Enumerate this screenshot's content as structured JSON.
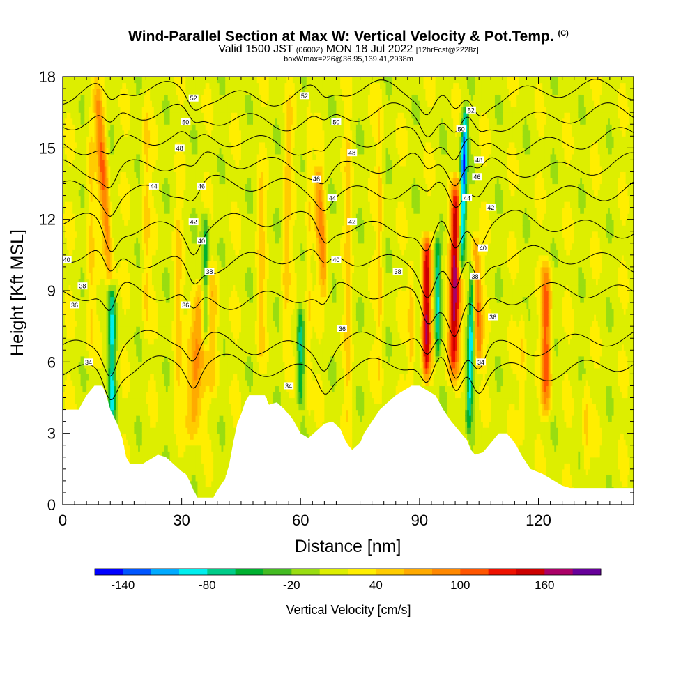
{
  "header": {
    "title": "Wind-Parallel Section at Max W: Vertical Velocity & Pot.Temp.",
    "copyright": "(C)",
    "valid_pre": "Valid 1500 JST",
    "valid_z": "(0600Z)",
    "valid_mid": "MON 18 Jul 2022",
    "valid_fcst": "[12hrFcst@2228z]",
    "box": "boxWmax=226@36.95,139.41,2938m"
  },
  "chart_data": {
    "type": "heatmap",
    "xlabel": "Distance [nm]",
    "ylabel": "Height [Kft MSL]",
    "xlim": [
      0,
      144
    ],
    "ylim": [
      0,
      18
    ],
    "x_ticks": [
      0,
      30,
      60,
      90,
      120
    ],
    "y_ticks": [
      0,
      3,
      6,
      9,
      12,
      15,
      18
    ],
    "colorbar": {
      "label": "Vertical Velocity [cm/s]",
      "tick_labels": [
        "-140",
        "-80",
        "-20",
        "40",
        "100",
        "160"
      ],
      "colors": [
        "#0000ff",
        "#0055ff",
        "#00aaff",
        "#00eeee",
        "#00cc88",
        "#00b030",
        "#44bb22",
        "#99dd11",
        "#ddee00",
        "#ffee00",
        "#ffcc00",
        "#ffaa00",
        "#ff8800",
        "#ff5500",
        "#ee1100",
        "#cc0000",
        "#aa0066",
        "#660099"
      ]
    },
    "terrain_top_kft": [
      [
        0,
        4.0
      ],
      [
        2,
        4.0
      ],
      [
        4,
        4.0
      ],
      [
        6,
        4.6
      ],
      [
        8,
        5.0
      ],
      [
        10,
        5.0
      ],
      [
        11,
        4.6
      ],
      [
        12,
        4.0
      ],
      [
        14,
        3.3
      ],
      [
        15,
        2.8
      ],
      [
        16,
        2.0
      ],
      [
        17,
        1.7
      ],
      [
        20,
        1.7
      ],
      [
        22,
        1.9
      ],
      [
        24,
        2.1
      ],
      [
        26,
        2.0
      ],
      [
        28,
        1.7
      ],
      [
        30,
        1.4
      ],
      [
        31,
        1.3
      ],
      [
        32,
        1.0
      ],
      [
        33,
        0.6
      ],
      [
        34,
        0.3
      ],
      [
        38,
        0.3
      ],
      [
        39,
        0.6
      ],
      [
        41,
        1.1
      ],
      [
        42,
        1.7
      ],
      [
        43,
        2.6
      ],
      [
        44,
        3.4
      ],
      [
        45,
        3.8
      ],
      [
        46,
        4.3
      ],
      [
        47,
        4.6
      ],
      [
        51,
        4.6
      ],
      [
        52,
        4.2
      ],
      [
        54,
        4.3
      ],
      [
        56,
        4.0
      ],
      [
        58,
        3.6
      ],
      [
        60,
        3.0
      ],
      [
        61,
        2.9
      ],
      [
        62,
        2.8
      ],
      [
        64,
        3.1
      ],
      [
        66,
        3.4
      ],
      [
        68,
        3.5
      ],
      [
        70,
        3.2
      ],
      [
        71,
        2.8
      ],
      [
        72,
        2.5
      ],
      [
        73,
        2.3
      ],
      [
        75,
        2.6
      ],
      [
        76,
        3.0
      ],
      [
        78,
        3.5
      ],
      [
        80,
        4.0
      ],
      [
        82,
        4.3
      ],
      [
        84,
        4.6
      ],
      [
        86,
        4.8
      ],
      [
        88,
        5.0
      ],
      [
        90,
        5.0
      ],
      [
        91,
        4.9
      ],
      [
        94,
        4.6
      ],
      [
        96,
        4.0
      ],
      [
        98,
        3.5
      ],
      [
        100,
        3.1
      ],
      [
        102,
        2.7
      ],
      [
        103,
        2.3
      ],
      [
        104,
        2.1
      ],
      [
        106,
        2.2
      ],
      [
        108,
        2.6
      ],
      [
        110,
        3.0
      ],
      [
        112,
        3.0
      ],
      [
        114,
        2.6
      ],
      [
        116,
        2.0
      ],
      [
        118,
        1.5
      ],
      [
        121,
        1.3
      ],
      [
        124,
        1.0
      ],
      [
        126,
        0.8
      ],
      [
        128,
        0.7
      ],
      [
        144,
        0.7
      ]
    ],
    "updrafts": [
      {
        "x": 12,
        "z0": 9.5,
        "z1": 17.5,
        "w": 1.2,
        "tilt": -0.4,
        "max": 100
      },
      {
        "x": 33,
        "z0": 3.0,
        "z1": 9.0,
        "w": 2.0,
        "tilt": 0.2,
        "max": 90
      },
      {
        "x": 38,
        "z0": 5.0,
        "z1": 10.0,
        "w": 1.5,
        "tilt": 0.0,
        "max": 50
      },
      {
        "x": 56,
        "z0": 6.5,
        "z1": 17.5,
        "w": 1.0,
        "tilt": 0.1,
        "max": 45
      },
      {
        "x": 66,
        "z0": 9.0,
        "z1": 14.0,
        "w": 1.2,
        "tilt": -0.3,
        "max": 85
      },
      {
        "x": 91.8,
        "z0": 5.5,
        "z1": 11.0,
        "w": 1.2,
        "tilt": 0.0,
        "max": 155
      },
      {
        "x": 98.5,
        "z0": 5.5,
        "z1": 13.5,
        "w": 1.5,
        "tilt": 0.1,
        "max": 160
      },
      {
        "x": 105,
        "z0": 6.0,
        "z1": 11.0,
        "w": 1.2,
        "tilt": -0.2,
        "max": 100
      },
      {
        "x": 122,
        "z0": 4.0,
        "z1": 10.0,
        "w": 1.2,
        "tilt": 0.0,
        "max": 110
      },
      {
        "x": 7,
        "z0": 6.0,
        "z1": 17.0,
        "w": 1.0,
        "tilt": 0.0,
        "max": 45
      },
      {
        "x": 21,
        "z0": 7.0,
        "z1": 17.5,
        "w": 1.0,
        "tilt": 0.0,
        "max": 45
      },
      {
        "x": 29,
        "z0": 4.0,
        "z1": 13.0,
        "w": 1.0,
        "tilt": 0.0,
        "max": 45
      },
      {
        "x": 50,
        "z0": 6.0,
        "z1": 14.0,
        "w": 1.0,
        "tilt": 0.0,
        "max": 45
      },
      {
        "x": 62,
        "z0": 3.5,
        "z1": 17.5,
        "w": 0.8,
        "tilt": 0.0,
        "max": 45
      },
      {
        "x": 72,
        "z0": 3.0,
        "z1": 17.0,
        "w": 0.8,
        "tilt": 0.0,
        "max": 45
      },
      {
        "x": 80,
        "z0": 4.5,
        "z1": 17.5,
        "w": 0.8,
        "tilt": 0.0,
        "max": 45
      },
      {
        "x": 88,
        "z0": 5.0,
        "z1": 10.0,
        "w": 1.0,
        "tilt": 0.0,
        "max": 55
      },
      {
        "x": 116,
        "z0": 3.0,
        "z1": 8.0,
        "w": 1.0,
        "tilt": 0.0,
        "max": 45
      },
      {
        "x": 132,
        "z0": 1.5,
        "z1": 5.0,
        "w": 1.0,
        "tilt": 0.0,
        "max": 45
      }
    ],
    "downdrafts": [
      {
        "x": 12.5,
        "z0": 3.0,
        "z1": 9.0,
        "w": 0.9,
        "tilt": 0.0,
        "min": -80
      },
      {
        "x": 36,
        "z0": 7.0,
        "z1": 12.0,
        "w": 0.8,
        "tilt": 0.0,
        "min": -60
      },
      {
        "x": 60,
        "z0": 4.5,
        "z1": 8.0,
        "w": 0.8,
        "tilt": 0.0,
        "min": -60
      },
      {
        "x": 94.5,
        "z0": 6.5,
        "z1": 11.0,
        "w": 0.8,
        "tilt": 0.0,
        "min": -80
      },
      {
        "x": 100.5,
        "z0": 10.0,
        "z1": 16.5,
        "w": 0.8,
        "tilt": 0.15,
        "min": -140
      },
      {
        "x": 102.5,
        "z0": 3.5,
        "z1": 10.0,
        "w": 0.8,
        "tilt": 0.15,
        "min": -90
      }
    ],
    "isentropes": [
      {
        "value": 34,
        "base_kft": 5.8
      },
      {
        "value": 36,
        "base_kft": 6.8
      },
      {
        "value": 38,
        "base_kft": 8.8
      },
      {
        "value": 40,
        "base_kft": 10.3
      },
      {
        "value": 42,
        "base_kft": 11.8
      },
      {
        "value": 44,
        "base_kft": 13.3
      },
      {
        "value": 46,
        "base_kft": 14.3
      },
      {
        "value": 48,
        "base_kft": 15.3
      },
      {
        "value": 50,
        "base_kft": 16.3
      },
      {
        "value": 52,
        "base_kft": 17.3
      }
    ],
    "isentrope_labels": [
      {
        "text": "34",
        "x": 6.5,
        "z": 6.0
      },
      {
        "text": "34",
        "x": 57,
        "z": 5.0
      },
      {
        "text": "34",
        "x": 105.5,
        "z": 6.0
      },
      {
        "text": "36",
        "x": 3,
        "z": 8.4
      },
      {
        "text": "36",
        "x": 31,
        "z": 8.4
      },
      {
        "text": "36",
        "x": 70.5,
        "z": 7.4
      },
      {
        "text": "36",
        "x": 108.5,
        "z": 7.9
      },
      {
        "text": "38",
        "x": 5,
        "z": 9.2
      },
      {
        "text": "38",
        "x": 37,
        "z": 9.8
      },
      {
        "text": "38",
        "x": 84.5,
        "z": 9.8
      },
      {
        "text": "38",
        "x": 104,
        "z": 9.6
      },
      {
        "text": "40",
        "x": 1,
        "z": 10.3
      },
      {
        "text": "40",
        "x": 35,
        "z": 11.1
      },
      {
        "text": "40",
        "x": 69,
        "z": 10.3
      },
      {
        "text": "40",
        "x": 106,
        "z": 10.8
      },
      {
        "text": "42",
        "x": 33,
        "z": 11.9
      },
      {
        "text": "42",
        "x": 73,
        "z": 11.9
      },
      {
        "text": "42",
        "x": 108,
        "z": 12.5
      },
      {
        "text": "44",
        "x": 23,
        "z": 13.4
      },
      {
        "text": "44",
        "x": 68,
        "z": 12.9
      },
      {
        "text": "44",
        "x": 102,
        "z": 12.9
      },
      {
        "text": "46",
        "x": 35,
        "z": 13.4
      },
      {
        "text": "46",
        "x": 64,
        "z": 13.7
      },
      {
        "text": "46",
        "x": 104.5,
        "z": 13.8
      },
      {
        "text": "48",
        "x": 29.5,
        "z": 15.0
      },
      {
        "text": "48",
        "x": 73,
        "z": 14.8
      },
      {
        "text": "48",
        "x": 105,
        "z": 14.5
      },
      {
        "text": "50",
        "x": 31,
        "z": 16.1
      },
      {
        "text": "50",
        "x": 69,
        "z": 16.1
      },
      {
        "text": "50",
        "x": 100.5,
        "z": 15.8
      },
      {
        "text": "52",
        "x": 33,
        "z": 17.1
      },
      {
        "text": "52",
        "x": 61,
        "z": 17.2
      },
      {
        "text": "52",
        "x": 103,
        "z": 16.6
      }
    ]
  }
}
